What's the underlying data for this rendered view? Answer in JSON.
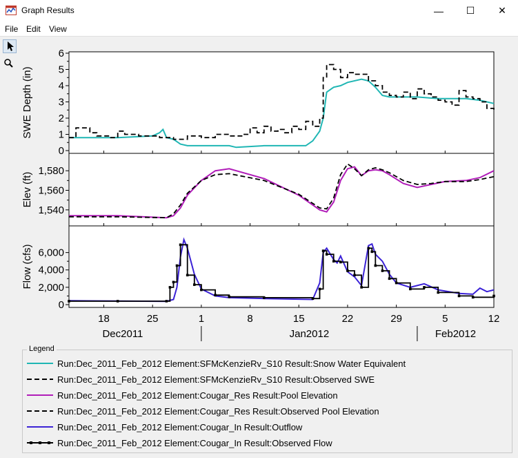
{
  "window": {
    "title": "Graph Results",
    "minimize": "—",
    "maximize": "☐",
    "close": "✕"
  },
  "menu": [
    "File",
    "Edit",
    "View"
  ],
  "tools": [
    "pointer-icon",
    "zoom-icon"
  ],
  "legend": {
    "title": "Legend",
    "entries": [
      {
        "label": "Run:Dec_2011_Feb_2012 Element:SFMcKenzieRv_S10 Result:Snow Water Equivalent",
        "color": "#1fb6b4",
        "style": "solid"
      },
      {
        "label": "Run:Dec_2011_Feb_2012 Element:SFMcKenzieRv_S10 Result:Observed SWE",
        "color": "#000000",
        "style": "dashed"
      },
      {
        "label": "Run:Dec_2011_Feb_2012 Element:Cougar_Res Result:Pool Elevation",
        "color": "#b01cb8",
        "style": "solid"
      },
      {
        "label": "Run:Dec_2011_Feb_2012 Element:Cougar_Res Result:Observed Pool Elevation",
        "color": "#000000",
        "style": "dashed"
      },
      {
        "label": "Run:Dec_2011_Feb_2012 Element:Cougar_In Result:Outflow",
        "color": "#3b22d6",
        "style": "solid"
      },
      {
        "label": "Run:Dec_2011_Feb_2012 Element:Cougar_In Result:Observed Flow",
        "color": "#000000",
        "style": "markers"
      }
    ]
  },
  "chart_data": {
    "type": "line",
    "x_domain": [
      "2011-12-13",
      "2012-02-12"
    ],
    "x_ticks": [
      {
        "date": "2011-12-18",
        "label": "18"
      },
      {
        "date": "2011-12-25",
        "label": "25"
      },
      {
        "date": "2012-01-01",
        "label": "1"
      },
      {
        "date": "2012-01-08",
        "label": "8"
      },
      {
        "date": "2012-01-15",
        "label": "15"
      },
      {
        "date": "2012-01-22",
        "label": "22"
      },
      {
        "date": "2012-01-29",
        "label": "29"
      },
      {
        "date": "2012-02-05",
        "label": "5"
      },
      {
        "date": "2012-02-12",
        "label": "12"
      }
    ],
    "month_labels": [
      {
        "label": "Dec2011",
        "start": "2011-12-13",
        "end": "2012-01-01"
      },
      {
        "label": "Jan2012",
        "start": "2012-01-01",
        "end": "2012-02-01"
      },
      {
        "label": "Feb2012",
        "start": "2012-02-01",
        "end": "2012-02-12"
      }
    ],
    "panels": [
      {
        "ylabel": "SWE Depth (in)",
        "ylim": [
          0,
          6
        ],
        "yticks": [
          {
            "v": 0,
            "label": "0"
          },
          {
            "v": 1,
            "label": "1"
          },
          {
            "v": 2,
            "label": "2"
          },
          {
            "v": 3,
            "label": "3"
          },
          {
            "v": 4,
            "label": "4"
          },
          {
            "v": 5,
            "label": "5"
          },
          {
            "v": 6,
            "label": "6"
          }
        ],
        "series": [
          {
            "name": "Snow Water Equivalent",
            "color": "#1fb6b4",
            "style": "solid",
            "x": [
              "2011-12-13",
              "2011-12-15",
              "2011-12-20",
              "2011-12-25",
              "2011-12-26",
              "2011-12-26T12",
              "2011-12-27",
              "2011-12-28",
              "2011-12-29",
              "2011-12-30",
              "2012-01-01",
              "2012-01-05",
              "2012-01-06",
              "2012-01-10",
              "2012-01-13",
              "2012-01-16",
              "2012-01-17",
              "2012-01-18",
              "2012-01-18T12",
              "2012-01-19",
              "2012-01-20",
              "2012-01-21",
              "2012-01-22",
              "2012-01-24",
              "2012-01-25",
              "2012-01-26",
              "2012-01-27",
              "2012-01-28",
              "2012-02-01",
              "2012-02-04",
              "2012-02-08",
              "2012-02-10",
              "2012-02-12"
            ],
            "y": [
              0.8,
              0.8,
              0.8,
              0.9,
              1.1,
              1.3,
              0.8,
              0.7,
              0.4,
              0.3,
              0.3,
              0.3,
              0.2,
              0.3,
              0.3,
              0.3,
              0.6,
              1.2,
              2.0,
              3.6,
              3.9,
              4.0,
              4.2,
              4.4,
              4.3,
              3.9,
              3.4,
              3.3,
              3.3,
              3.2,
              3.2,
              3.1,
              2.9
            ]
          },
          {
            "name": "Observed SWE",
            "color": "#000000",
            "style": "dashed",
            "step": true,
            "x": [
              "2011-12-13",
              "2011-12-14",
              "2011-12-16",
              "2011-12-17",
              "2011-12-19",
              "2011-12-20",
              "2011-12-21",
              "2011-12-23",
              "2011-12-26",
              "2011-12-28",
              "2011-12-30",
              "2012-01-01",
              "2012-01-03",
              "2012-01-05",
              "2012-01-07",
              "2012-01-08",
              "2012-01-09",
              "2012-01-10",
              "2012-01-11",
              "2012-01-12",
              "2012-01-13",
              "2012-01-14",
              "2012-01-15",
              "2012-01-16",
              "2012-01-17",
              "2012-01-18",
              "2012-01-18T12",
              "2012-01-19",
              "2012-01-20",
              "2012-01-21",
              "2012-01-22",
              "2012-01-23",
              "2012-01-25",
              "2012-01-26",
              "2012-01-27",
              "2012-01-28",
              "2012-01-29",
              "2012-01-30",
              "2012-01-31",
              "2012-02-01",
              "2012-02-02",
              "2012-02-03",
              "2012-02-04",
              "2012-02-05",
              "2012-02-06",
              "2012-02-07",
              "2012-02-08",
              "2012-02-09",
              "2012-02-10",
              "2012-02-11",
              "2012-02-12"
            ],
            "y": [
              0.8,
              1.4,
              1.1,
              0.9,
              0.8,
              1.2,
              1.0,
              0.9,
              0.8,
              0.7,
              0.9,
              0.8,
              1.0,
              0.9,
              1.0,
              1.4,
              1.1,
              1.5,
              1.2,
              1.3,
              1.1,
              1.5,
              1.3,
              1.8,
              1.5,
              2.0,
              4.5,
              5.3,
              5.0,
              4.5,
              4.8,
              4.7,
              4.3,
              4.0,
              3.6,
              3.4,
              3.3,
              3.6,
              3.2,
              3.8,
              3.5,
              3.3,
              3.1,
              3.0,
              2.8,
              3.7,
              3.3,
              3.2,
              3.0,
              2.6,
              2.4
            ]
          }
        ]
      },
      {
        "ylabel": "Elev (ft)",
        "ylim": [
          1530,
          1590
        ],
        "yticks": [
          {
            "v": 1540,
            "label": "1,540"
          },
          {
            "v": 1560,
            "label": "1,560"
          },
          {
            "v": 1580,
            "label": "1,580"
          }
        ],
        "series": [
          {
            "name": "Pool Elevation",
            "color": "#b01cb8",
            "style": "solid",
            "x": [
              "2011-12-13",
              "2011-12-20",
              "2011-12-27",
              "2011-12-28",
              "2011-12-29",
              "2011-12-30",
              "2012-01-01",
              "2012-01-03",
              "2012-01-05",
              "2012-01-10",
              "2012-01-15",
              "2012-01-18",
              "2012-01-19",
              "2012-01-20",
              "2012-01-21",
              "2012-01-22",
              "2012-01-23",
              "2012-01-24",
              "2012-01-25",
              "2012-01-26",
              "2012-01-27",
              "2012-01-28",
              "2012-01-30",
              "2012-02-01",
              "2012-02-03",
              "2012-02-05",
              "2012-02-08",
              "2012-02-10",
              "2012-02-12"
            ],
            "y": [
              1534,
              1534,
              1532,
              1534,
              1542,
              1555,
              1570,
              1580,
              1582,
              1572,
              1555,
              1540,
              1538,
              1548,
              1570,
              1582,
              1584,
              1575,
              1580,
              1581,
              1580,
              1576,
              1567,
              1563,
              1566,
              1569,
              1570,
              1573,
              1580
            ]
          },
          {
            "name": "Observed Pool Elevation",
            "color": "#000000",
            "style": "dashed",
            "x": [
              "2011-12-13",
              "2011-12-20",
              "2011-12-27",
              "2011-12-28",
              "2011-12-29",
              "2011-12-30",
              "2012-01-01",
              "2012-01-03",
              "2012-01-05",
              "2012-01-10",
              "2012-01-15",
              "2012-01-18",
              "2012-01-19",
              "2012-01-20",
              "2012-01-21",
              "2012-01-22",
              "2012-01-23",
              "2012-01-24",
              "2012-01-25",
              "2012-01-26",
              "2012-01-27",
              "2012-01-28",
              "2012-01-30",
              "2012-02-01",
              "2012-02-03",
              "2012-02-05",
              "2012-02-08",
              "2012-02-10",
              "2012-02-12"
            ],
            "y": [
              1533,
              1533,
              1532,
              1536,
              1545,
              1557,
              1570,
              1576,
              1577,
              1570,
              1556,
              1542,
              1541,
              1552,
              1576,
              1587,
              1582,
              1575,
              1581,
              1583,
              1581,
              1578,
              1570,
              1566,
              1567,
              1569,
              1569,
              1571,
              1574
            ]
          }
        ]
      },
      {
        "ylabel": "Flow (cfs)",
        "ylim": [
          0,
          7800
        ],
        "yticks": [
          {
            "v": 0,
            "label": "0"
          },
          {
            "v": 2000,
            "label": "2,000"
          },
          {
            "v": 4000,
            "label": "4,000"
          },
          {
            "v": 6000,
            "label": "6,000"
          }
        ],
        "series": [
          {
            "name": "Outflow",
            "color": "#3b22d6",
            "style": "solid",
            "x": [
              "2011-12-13",
              "2011-12-20",
              "2011-12-27",
              "2011-12-28",
              "2011-12-28T12",
              "2011-12-29",
              "2011-12-29T12",
              "2011-12-30",
              "2011-12-31",
              "2012-01-01",
              "2012-01-03",
              "2012-01-05",
              "2012-01-10",
              "2012-01-17",
              "2012-01-18",
              "2012-01-18T12",
              "2012-01-19",
              "2012-01-20",
              "2012-01-20T12",
              "2012-01-21",
              "2012-01-22",
              "2012-01-23",
              "2012-01-24",
              "2012-01-25",
              "2012-01-25T12",
              "2012-01-26",
              "2012-01-27",
              "2012-01-28",
              "2012-01-29",
              "2012-01-31",
              "2012-02-02",
              "2012-02-04",
              "2012-02-07",
              "2012-02-09",
              "2012-02-10",
              "2012-02-11",
              "2012-02-12"
            ],
            "y": [
              450,
              420,
              380,
              600,
              2000,
              5500,
              7500,
              6500,
              3500,
              1800,
              1000,
              800,
              700,
              600,
              2500,
              6000,
              6500,
              5200,
              4800,
              5600,
              3800,
              3200,
              2200,
              6800,
              7000,
              5800,
              5000,
              3500,
              2500,
              2000,
              2400,
              1700,
              1300,
              1200,
              1900,
              1500,
              1700
            ]
          },
          {
            "name": "Observed Flow",
            "color": "#000000",
            "style": "markers",
            "step": true,
            "x": [
              "2011-12-13",
              "2011-12-20",
              "2011-12-27",
              "2011-12-27T12",
              "2011-12-28",
              "2011-12-28T12",
              "2011-12-29",
              "2011-12-30",
              "2011-12-31",
              "2012-01-01",
              "2012-01-03",
              "2012-01-05",
              "2012-01-10",
              "2012-01-17",
              "2012-01-18",
              "2012-01-18T12",
              "2012-01-19",
              "2012-01-20",
              "2012-01-21",
              "2012-01-22",
              "2012-01-23",
              "2012-01-24",
              "2012-01-25",
              "2012-01-25T12",
              "2012-01-26",
              "2012-01-27",
              "2012-01-28",
              "2012-01-29",
              "2012-01-31",
              "2012-02-02",
              "2012-02-04",
              "2012-02-07",
              "2012-02-09",
              "2012-02-12"
            ],
            "y": [
              400,
              400,
              400,
              2000,
              2600,
              4500,
              6900,
              3400,
              2300,
              1700,
              1100,
              900,
              800,
              700,
              1800,
              6200,
              5800,
              5000,
              4900,
              3900,
              3400,
              2000,
              6500,
              6100,
              4500,
              3900,
              3000,
              2500,
              1800,
              2000,
              1400,
              1000,
              850,
              1000
            ]
          }
        ]
      }
    ]
  }
}
